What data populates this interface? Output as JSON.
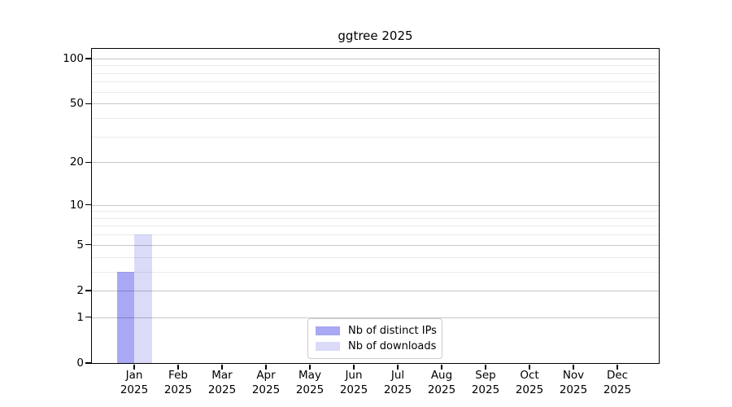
{
  "chart_data": {
    "type": "bar",
    "title": "ggtree 2025",
    "categories": [
      "Jan",
      "Feb",
      "Mar",
      "Apr",
      "May",
      "Jun",
      "Jul",
      "Aug",
      "Sep",
      "Oct",
      "Nov",
      "Dec"
    ],
    "category_year": "2025",
    "series": [
      {
        "name": "Nb of distinct IPs",
        "color": "#a8a8f5",
        "values": [
          3,
          0,
          0,
          0,
          0,
          0,
          0,
          0,
          0,
          0,
          0,
          0
        ]
      },
      {
        "name": "Nb of downloads",
        "color": "#dbdbf9",
        "values": [
          6,
          0,
          0,
          0,
          0,
          0,
          0,
          0,
          0,
          0,
          0,
          0
        ]
      }
    ],
    "y_axis": {
      "scale": "log1p",
      "major_ticks": [
        0,
        1,
        2,
        5,
        10,
        20,
        50,
        100
      ],
      "minor_gridlines": [
        3,
        4,
        6,
        7,
        8,
        9,
        30,
        40,
        60,
        70,
        80,
        90
      ],
      "top_value": 116
    },
    "x_axis": {
      "tick_label_lines": 2
    },
    "grid": {
      "major_color": "rgba(0,0,0,0.22)",
      "minor_color": "rgba(0,0,0,0.08)",
      "drawn_over_bars": true
    },
    "legend": {
      "position": "lower center"
    },
    "axis_color": "#000000",
    "background_color": "#ffffff"
  }
}
